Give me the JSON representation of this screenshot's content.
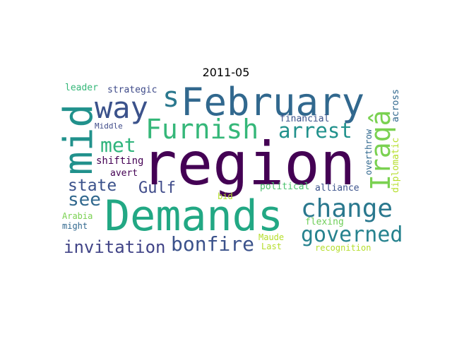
{
  "title": "2011-05",
  "words": [
    {
      "text": "region",
      "color": "#440154"
    },
    {
      "text": "Demands",
      "color": "#22a884"
    },
    {
      "text": "February",
      "color": "#31688e"
    },
    {
      "text": "mid",
      "color": "#21918c"
    },
    {
      "text": "way",
      "color": "#3b528b"
    },
    {
      "text": "s",
      "color": "#2a788e"
    },
    {
      "text": "Furnish",
      "color": "#35b779"
    },
    {
      "text": "arrest",
      "color": "#21918c"
    },
    {
      "text": "Iraqâ",
      "color": "#7ad151"
    },
    {
      "text": "met",
      "color": "#2fb47c"
    },
    {
      "text": "change",
      "color": "#2a788e"
    },
    {
      "text": "state",
      "color": "#3b528b"
    },
    {
      "text": "Gulf",
      "color": "#3e4a89"
    },
    {
      "text": "see",
      "color": "#31688e"
    },
    {
      "text": "governed",
      "color": "#26828e"
    },
    {
      "text": "bonfire",
      "color": "#3b528b"
    },
    {
      "text": "invitation",
      "color": "#414487"
    },
    {
      "text": "leader",
      "color": "#35b779"
    },
    {
      "text": "strategic",
      "color": "#3e4a89"
    },
    {
      "text": "Middle",
      "color": "#3e4a89"
    },
    {
      "text": "financial",
      "color": "#3b528b"
    },
    {
      "text": "shifting",
      "color": "#440154"
    },
    {
      "text": "avert",
      "color": "#440154"
    },
    {
      "text": "political",
      "color": "#4ac16d"
    },
    {
      "text": "alliance",
      "color": "#3b528b"
    },
    {
      "text": "bid",
      "color": "#b5de2b"
    },
    {
      "text": "Arabia",
      "color": "#7ad151"
    },
    {
      "text": "might",
      "color": "#31688e"
    },
    {
      "text": "flexing",
      "color": "#6ece58"
    },
    {
      "text": "Maude",
      "color": "#b5de2b"
    },
    {
      "text": "Last",
      "color": "#b5de2b"
    },
    {
      "text": "recognition",
      "color": "#b5de2b"
    },
    {
      "text": "across",
      "color": "#31688e"
    },
    {
      "text": "diplomatic",
      "color": "#b5de2b"
    },
    {
      "text": "overthrow",
      "color": "#31688e"
    }
  ]
}
